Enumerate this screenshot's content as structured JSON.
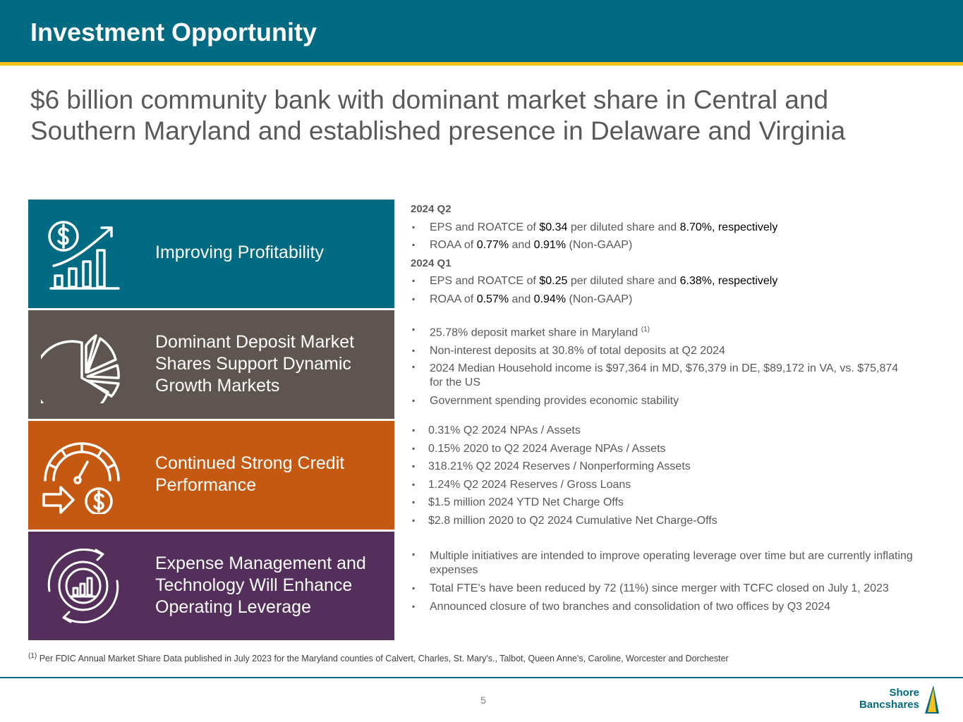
{
  "header": {
    "title": "Investment Opportunity"
  },
  "subtitle": "$6 billion community bank with dominant market share in Central and Southern Maryland and established presence in Delaware and Virginia",
  "panels": [
    {
      "title": "Improving Profitability",
      "icon": "growth-chart-icon",
      "color": "#006b82"
    },
    {
      "title": "Dominant Deposit Market Shares Support Dynamic Growth Markets",
      "icon": "pie-chart-icon",
      "color": "#5e5550"
    },
    {
      "title": "Continued Strong Credit Performance",
      "icon": "speedometer-dollar-icon",
      "color": "#c65911"
    },
    {
      "title": "Expense Management and Technology Will Enhance Operating Leverage",
      "icon": "gear-chart-icon",
      "color": "#542f5c"
    }
  ],
  "profitability": {
    "q2_label": "2024 Q2",
    "q2_line1": {
      "a": "EPS and ROATCE of ",
      "v1": "$0.34",
      "b": " per diluted share and ",
      "v2": "8.70%, respectively"
    },
    "q2_line2": {
      "a": "ROAA of ",
      "v1": "0.77%",
      "b": " and ",
      "v2": "0.91%",
      "c": " (Non-GAAP)"
    },
    "q1_label": "2024 Q1",
    "q1_line1": {
      "a": "EPS and ROATCE of ",
      "v1": "$0.25",
      "b": " per diluted share and ",
      "v2": "6.38%, respectively"
    },
    "q1_line2": {
      "a": "ROAA of ",
      "v1": "0.57%",
      "b": " and ",
      "v2": "0.94%",
      "c": " (Non-GAAP)"
    }
  },
  "deposits": {
    "item1": "25.78% deposit market share in Maryland",
    "item1_note": "(1)",
    "item2": "Non-interest deposits at 30.8% of total deposits at Q2 2024",
    "item3": "2024 Median Household income is $97,364 in MD, $76,379 in DE, $89,172 in VA, vs. $75,874 for the US",
    "item4": "Government spending provides economic stability"
  },
  "credit": [
    "0.31% Q2 2024 NPAs / Assets",
    "0.15% 2020 to Q2 2024 Average NPAs / Assets",
    "318.21% Q2 2024 Reserves / Nonperforming Assets",
    "1.24% Q2 2024 Reserves / Gross Loans",
    "$1.5 million 2024 YTD Net Charge Offs",
    "$2.8 million 2020 to Q2 2024 Cumulative Net Charge-Offs"
  ],
  "expense": [
    "Multiple initiatives are intended to improve operating leverage over time but are currently inflating expenses",
    "Total FTE's have been reduced by 72 (11%) since merger with TCFC closed on July 1, 2023",
    "Announced closure of two branches and consolidation of two offices by Q3 2024"
  ],
  "footnote": {
    "mark": "(1)",
    "text": " Per FDIC Annual Market Share Data published in July 2023 for the Maryland counties of Calvert, Charles, St. Mary's., Talbot, Queen Anne's, Caroline, Worcester and Dorchester"
  },
  "page_number": "5",
  "logo": {
    "line1": "Shore",
    "line2": "Bancshares"
  }
}
